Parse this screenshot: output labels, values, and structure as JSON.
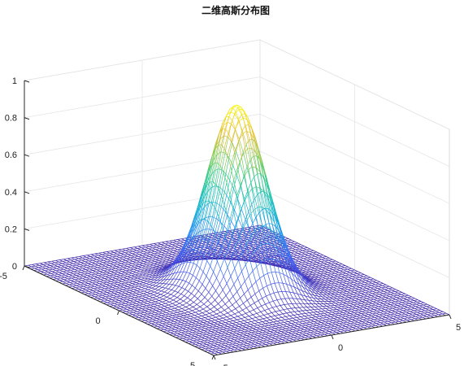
{
  "chart_data": {
    "type": "surface-mesh",
    "title": "二维高斯分布图",
    "xlabel": "",
    "ylabel": "",
    "zlabel": "",
    "function": "z = exp(-(x^2 + y^2) / 2)",
    "xlim": [
      -5,
      5
    ],
    "ylim": [
      -5,
      5
    ],
    "zlim": [
      0,
      1
    ],
    "x_ticks": [
      "-5",
      "0",
      "5"
    ],
    "y_ticks": [
      "-5",
      "0",
      "5"
    ],
    "z_ticks": [
      "0",
      "0.2",
      "0.4",
      "0.6",
      "0.8",
      "1"
    ],
    "peak": {
      "x": 0,
      "y": 0,
      "z": 1
    },
    "grid": true,
    "colormap": "parula",
    "colors": {
      "low": "#3e26a8",
      "mid": "#13beb8",
      "high": "#f9fb0e",
      "gridline": "#e6e6e6",
      "axis": "#262626"
    }
  }
}
